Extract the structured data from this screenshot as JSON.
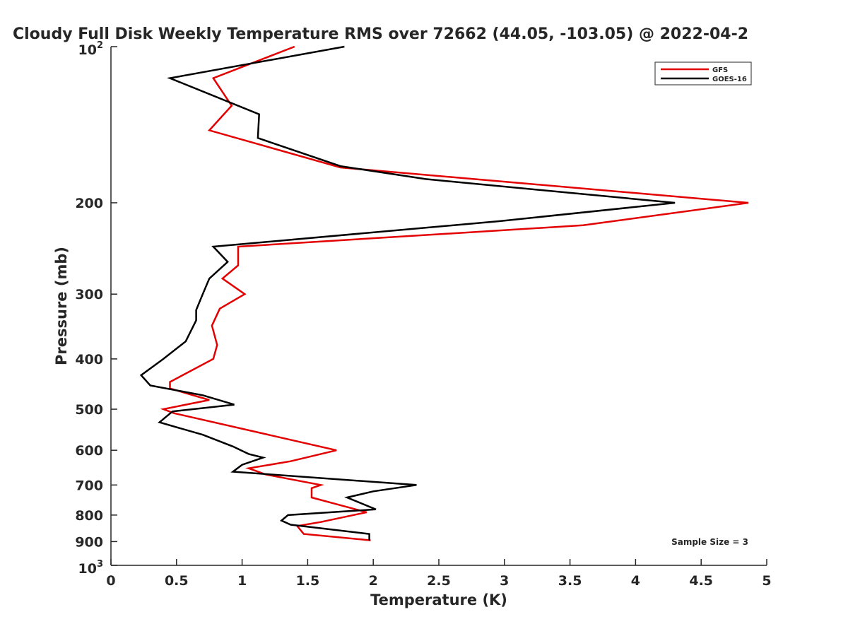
{
  "chart_data": {
    "type": "line",
    "title": "Cloudy Full Disk Weekly Temperature RMS over 72662 (44.05, -103.05) @ 2022-04-2",
    "xlabel": "Temperature (K)",
    "ylabel": "Pressure (mb)",
    "xlim": [
      0,
      5
    ],
    "ylim": [
      100,
      1000
    ],
    "y_scale": "log",
    "y_reversed": true,
    "x_ticks": [
      0,
      0.5,
      1,
      1.5,
      2,
      2.5,
      3,
      3.5,
      4,
      4.5,
      5
    ],
    "x_tick_labels": [
      "0",
      "0.5",
      "1",
      "1.5",
      "2",
      "2.5",
      "3",
      "3.5",
      "4",
      "4.5",
      "5"
    ],
    "y_ticks": [
      200,
      300,
      400,
      500,
      600,
      700,
      800,
      900
    ],
    "y_tick_labels": [
      "200",
      "300",
      "400",
      "500",
      "600",
      "700",
      "800",
      "900"
    ],
    "y_pow_ticks": [
      {
        "value": 100,
        "base": "10",
        "exp": "2"
      },
      {
        "value": 1000,
        "base": "10",
        "exp": "3"
      }
    ],
    "grid": false,
    "legend_position": "top-right",
    "annotation": "Sample Size = 3",
    "series": [
      {
        "name": "GFS",
        "color": "#e30000",
        "points": [
          [
            1.4,
            100
          ],
          [
            0.78,
            115
          ],
          [
            0.92,
            130
          ],
          [
            0.75,
            145
          ],
          [
            1.75,
            171
          ],
          [
            4.86,
            200
          ],
          [
            3.6,
            221
          ],
          [
            0.97,
            243
          ],
          [
            0.97,
            264
          ],
          [
            0.85,
            280
          ],
          [
            1.02,
            300
          ],
          [
            0.83,
            320
          ],
          [
            0.77,
            345
          ],
          [
            0.81,
            376
          ],
          [
            0.78,
            400
          ],
          [
            0.45,
            443
          ],
          [
            0.45,
            456
          ],
          [
            0.75,
            480
          ],
          [
            0.4,
            500
          ],
          [
            0.48,
            509
          ],
          [
            1.72,
            600
          ],
          [
            1.37,
            630
          ],
          [
            1.05,
            650
          ],
          [
            1.18,
            668
          ],
          [
            1.6,
            700
          ],
          [
            1.53,
            710
          ],
          [
            1.53,
            740
          ],
          [
            1.95,
            790
          ],
          [
            1.6,
            825
          ],
          [
            1.42,
            840
          ],
          [
            1.47,
            870
          ],
          [
            1.98,
            895
          ]
        ]
      },
      {
        "name": "GOES-16",
        "color": "#000000",
        "points": [
          [
            1.78,
            100
          ],
          [
            0.45,
            115
          ],
          [
            1.13,
            135
          ],
          [
            1.12,
            150
          ],
          [
            1.75,
            170
          ],
          [
            2.4,
            180
          ],
          [
            4.3,
            200
          ],
          [
            2.96,
            217
          ],
          [
            0.78,
            243
          ],
          [
            0.89,
            260
          ],
          [
            0.75,
            280
          ],
          [
            0.7,
            300
          ],
          [
            0.65,
            322
          ],
          [
            0.65,
            337
          ],
          [
            0.57,
            370
          ],
          [
            0.4,
            400
          ],
          [
            0.23,
            430
          ],
          [
            0.3,
            450
          ],
          [
            0.7,
            470
          ],
          [
            0.94,
            490
          ],
          [
            0.47,
            505
          ],
          [
            0.37,
            530
          ],
          [
            0.7,
            560
          ],
          [
            0.93,
            590
          ],
          [
            1.05,
            610
          ],
          [
            1.16,
            620
          ],
          [
            1.0,
            640
          ],
          [
            0.93,
            660
          ],
          [
            2.33,
            700
          ],
          [
            2.0,
            720
          ],
          [
            1.8,
            740
          ],
          [
            2.02,
            780
          ],
          [
            1.35,
            800
          ],
          [
            1.3,
            820
          ],
          [
            1.37,
            835
          ],
          [
            1.97,
            870
          ],
          [
            1.97,
            895
          ]
        ]
      }
    ]
  }
}
